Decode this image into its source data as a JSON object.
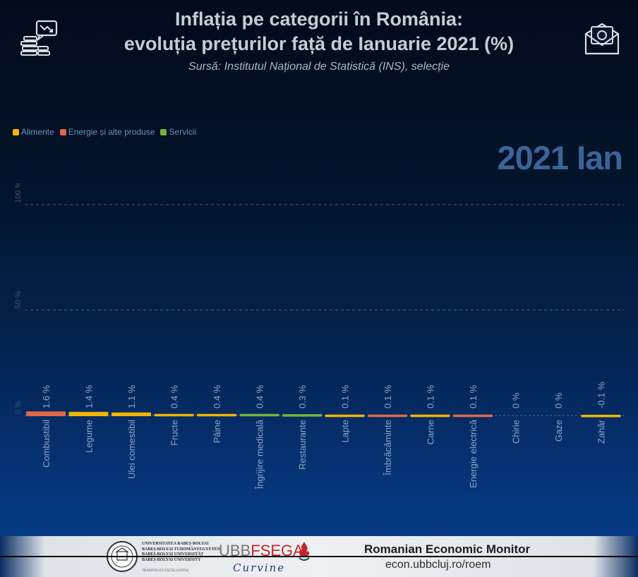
{
  "header": {
    "title_line1": "Inflația pe categorii în România:",
    "title_line2": "evoluția prețurilor față de Ianuarie 2021 (%)",
    "source": "Sursă:  Institutul Național de Statistică (INS), selecție",
    "period": "2021 Ian",
    "left_icon": "chart-down-coins-icon",
    "right_icon": "envelope-money-icon"
  },
  "legend": [
    {
      "label": "Alimente",
      "color": "#f2b600"
    },
    {
      "label": "Energie și alte produse",
      "color": "#e0674a"
    },
    {
      "label": "Servicii",
      "color": "#78b33a"
    }
  ],
  "chart_data": {
    "type": "bar",
    "title": "Inflația pe categorii în România: evoluția prețurilor față de Ianuarie 2021 (%)",
    "categories": [
      "Combustibil",
      "Legume",
      "Ulei comestibil",
      "Fructe",
      "Pâine",
      "Îngrijire medicală",
      "Restaurante",
      "Lapte",
      "Îmbrăcăminte",
      "Carne",
      "Energie electrică",
      "Chirie",
      "Gaze",
      "Zahăr"
    ],
    "values": [
      1.6,
      1.4,
      1.1,
      0.4,
      0.4,
      0.4,
      0.3,
      0.1,
      0.1,
      0.1,
      0.1,
      0,
      0,
      -0.1
    ],
    "value_labels": [
      "1.6 %",
      "1.4 %",
      "1.1 %",
      "0.4 %",
      "0.4 %",
      "0.4 %",
      "0.3 %",
      "0.1 %",
      "0.1 %",
      "0.1 %",
      "0.1 %",
      "0 %",
      "0 %",
      "-0.1 %"
    ],
    "groups": [
      "Energie și alte produse",
      "Alimente",
      "Alimente",
      "Alimente",
      "Alimente",
      "Servicii",
      "Servicii",
      "Alimente",
      "Energie și alte produse",
      "Alimente",
      "Energie și alte produse",
      "Servicii",
      "Energie și alte produse",
      "Alimente"
    ],
    "y_ticks": [
      0,
      50,
      100
    ],
    "y_tick_labels": [
      "0 %",
      "50 %",
      "100 %"
    ],
    "ylim": [
      0,
      100
    ],
    "grid": true
  },
  "footer": {
    "university_lines": [
      "UNIVERSITATEA BABEȘ-BOLYAI",
      "BABEȘ-BOLYAI TUDOMÁNYEGYETEM",
      "BABEȘ-BOLYAI UNIVERSITÄT",
      "BABEȘ-BOLYAI UNIVERSITY"
    ],
    "university_motto": "TRADITIO ET EXCELLENTIA",
    "fsega_prefix": "UBB",
    "fsega_main": "FSEGA",
    "fsega_curve": "Curvine",
    "monitor_title": "Romanian Economic Monitor",
    "monitor_url": "econ.ubbcluj.ro/roem"
  }
}
